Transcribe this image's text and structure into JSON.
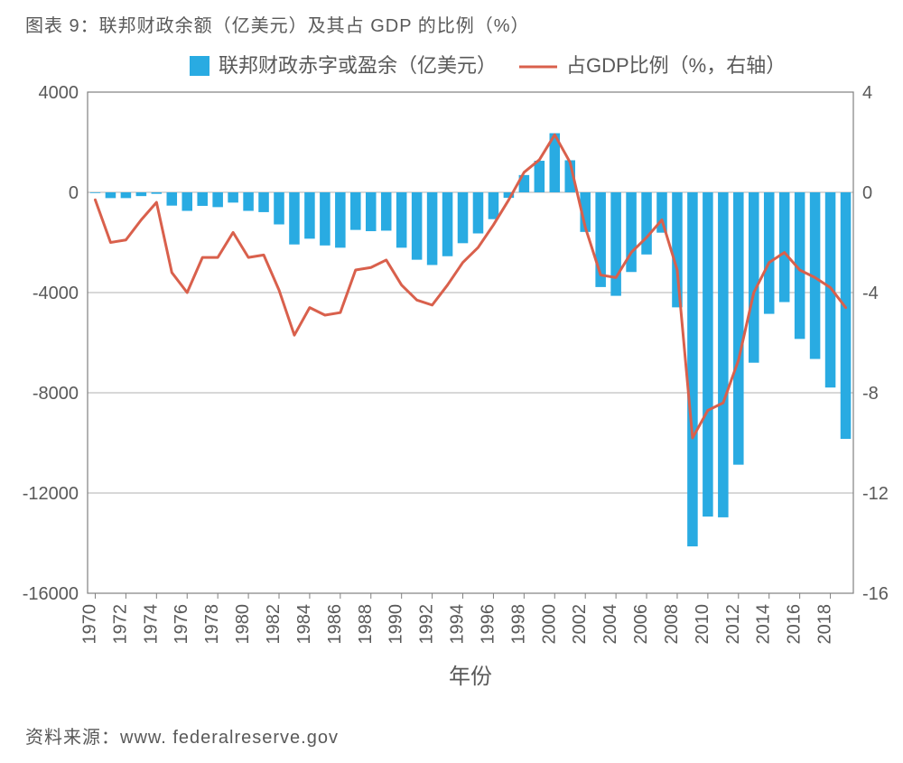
{
  "title": "图表 9：联邦财政余额（亿美元）及其占 GDP 的比例（%）",
  "source": "资料来源：www. federalreserve.gov",
  "chart": {
    "type": "bar+line",
    "background_color": "#ffffff",
    "plot_border_color": "#808080",
    "grid_color": "#b0b0b0",
    "bar_color": "#29abe2",
    "line_color": "#d9604c",
    "line_width": 3,
    "legend": {
      "bar_label": "联邦财政赤字或盈余（亿美元）",
      "line_label": "占GDP比例（%，右轴）"
    },
    "xlabel": "年份",
    "x_ticks": [
      1970,
      1972,
      1974,
      1976,
      1978,
      1980,
      1982,
      1984,
      1986,
      1988,
      1990,
      1992,
      1994,
      1996,
      1998,
      2000,
      2002,
      2004,
      2006,
      2008,
      2010,
      2012,
      2014,
      2016,
      2018
    ],
    "y_left": {
      "min": -16000,
      "max": 4000,
      "step": 4000
    },
    "y_right": {
      "min": -16,
      "max": 4,
      "step": 4
    },
    "years": [
      1970,
      1971,
      1972,
      1973,
      1974,
      1975,
      1976,
      1977,
      1978,
      1979,
      1980,
      1981,
      1982,
      1983,
      1984,
      1985,
      1986,
      1987,
      1988,
      1989,
      1990,
      1991,
      1992,
      1993,
      1994,
      1995,
      1996,
      1997,
      1998,
      1999,
      2000,
      2001,
      2002,
      2003,
      2004,
      2005,
      2006,
      2007,
      2008,
      2009,
      2010,
      2011,
      2012,
      2013,
      2014,
      2015,
      2016,
      2017,
      2018,
      2019
    ],
    "bar_values": [
      -28,
      -230,
      -230,
      -150,
      -60,
      -530,
      -740,
      -540,
      -590,
      -410,
      -740,
      -790,
      -1280,
      -2080,
      -1850,
      -2120,
      -2210,
      -1500,
      -1550,
      -1530,
      -2210,
      -2690,
      -2900,
      -2550,
      -2030,
      -1640,
      -1070,
      -220,
      690,
      1260,
      2360,
      1280,
      -1580,
      -3780,
      -4130,
      -3180,
      -2480,
      -1610,
      -4590,
      -14130,
      -12940,
      -12970,
      -10870,
      -6800,
      -4850,
      -4380,
      -5850,
      -6650,
      -7790,
      -9840
    ],
    "line_values": [
      -0.3,
      -2.0,
      -1.9,
      -1.1,
      -0.4,
      -3.2,
      -4.0,
      -2.6,
      -2.6,
      -1.6,
      -2.6,
      -2.5,
      -3.9,
      -5.7,
      -4.6,
      -4.9,
      -4.8,
      -3.1,
      -3.0,
      -2.7,
      -3.7,
      -4.3,
      -4.5,
      -3.7,
      -2.8,
      -2.2,
      -1.3,
      -0.3,
      0.8,
      1.3,
      2.3,
      1.2,
      -1.4,
      -3.3,
      -3.4,
      -2.4,
      -1.8,
      -1.1,
      -3.1,
      -9.8,
      -8.7,
      -8.4,
      -6.7,
      -4.0,
      -2.8,
      -2.4,
      -3.1,
      -3.4,
      -3.8,
      -4.6
    ]
  }
}
